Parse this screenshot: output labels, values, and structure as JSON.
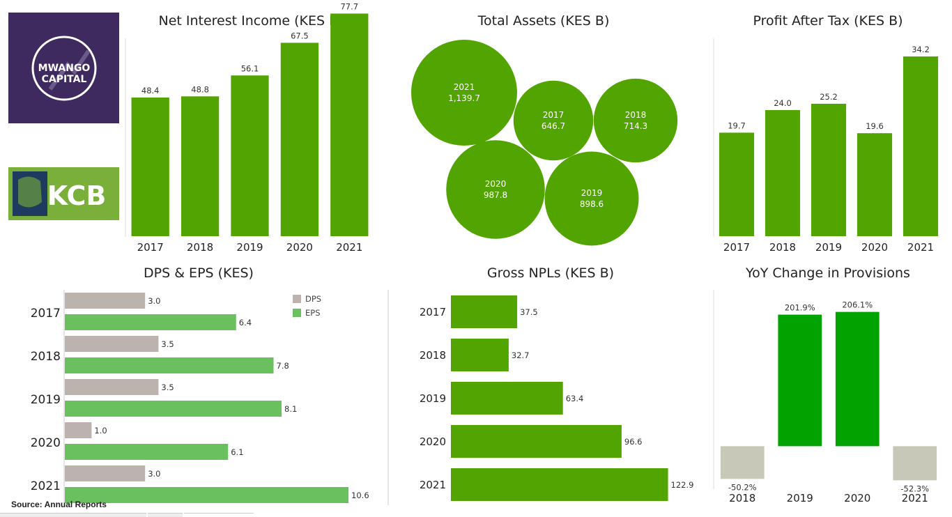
{
  "titles": {
    "nii": "Net Interest Income (KES B)",
    "assets": "Total Assets (KES B)",
    "pat": "Profit After Tax (KES B)",
    "dps_eps": "DPS & EPS (KES)",
    "npl": "Gross NPLs (KES B)",
    "prov": "YoY Change in Provisions"
  },
  "logos": {
    "mwango_line1": "MWANGO",
    "mwango_line2": "CAPITAL",
    "kcb": "KCB"
  },
  "source": "Source: Annual Reports",
  "colors": {
    "green": "#52a500",
    "light_green": "#6abf5e",
    "bright_green": "#00a300",
    "grey": "#bcb2ae",
    "neg_grey": "#c8c8b8",
    "purple": "#3e2a5e",
    "kcb_green": "#7ab03a"
  },
  "chart_data": [
    {
      "id": "nii",
      "type": "bar",
      "title": "Net Interest Income (KES B)",
      "categories": [
        "2017",
        "2018",
        "2019",
        "2020",
        "2021"
      ],
      "values": [
        48.4,
        48.8,
        56.1,
        67.5,
        77.7
      ],
      "labels": [
        "48.4",
        "48.8",
        "56.1",
        "67.5",
        "77.7"
      ],
      "ylim": [
        0,
        80
      ]
    },
    {
      "id": "assets",
      "type": "bubble",
      "title": "Total Assets (KES B)",
      "points": [
        {
          "year": "2021",
          "value": 1139.7,
          "label": "1,139.7"
        },
        {
          "year": "2017",
          "value": 646.7,
          "label": "646.7"
        },
        {
          "year": "2018",
          "value": 714.3,
          "label": "714.3"
        },
        {
          "year": "2020",
          "value": 987.8,
          "label": "987.8"
        },
        {
          "year": "2019",
          "value": 898.6,
          "label": "898.6"
        }
      ]
    },
    {
      "id": "pat",
      "type": "bar",
      "title": "Profit After Tax (KES B)",
      "categories": [
        "2017",
        "2018",
        "2019",
        "2020",
        "2021"
      ],
      "values": [
        19.7,
        24.0,
        25.2,
        19.6,
        34.2
      ],
      "labels": [
        "19.7",
        "24.0",
        "25.2",
        "19.6",
        "34.2"
      ],
      "ylim": [
        0,
        35
      ]
    },
    {
      "id": "dps_eps",
      "type": "bar",
      "orientation": "horizontal",
      "title": "DPS & EPS (KES)",
      "categories": [
        "2017",
        "2018",
        "2019",
        "2020",
        "2021"
      ],
      "series": [
        {
          "name": "DPS",
          "values": [
            3.0,
            3.5,
            3.5,
            1.0,
            3.0
          ],
          "labels": [
            "3.0",
            "3.5",
            "3.5",
            "1.0",
            "3.0"
          ]
        },
        {
          "name": "EPS",
          "values": [
            6.4,
            7.8,
            8.1,
            6.1,
            10.6
          ],
          "labels": [
            "6.4",
            "7.8",
            "8.1",
            "6.1",
            "10.6"
          ]
        }
      ],
      "legend": "top-right",
      "xlim": [
        0,
        11
      ]
    },
    {
      "id": "npl",
      "type": "bar",
      "orientation": "horizontal",
      "title": "Gross NPLs (KES B)",
      "categories": [
        "2017",
        "2018",
        "2019",
        "2020",
        "2021"
      ],
      "values": [
        37.5,
        32.7,
        63.4,
        96.6,
        122.9
      ],
      "labels": [
        "37.5",
        "32.7",
        "63.4",
        "96.6",
        "122.9"
      ],
      "xlim": [
        0,
        130
      ]
    },
    {
      "id": "prov",
      "type": "bar",
      "title": "YoY Change in Provisions",
      "categories": [
        "2018",
        "2019",
        "2020",
        "2021"
      ],
      "values": [
        -50.2,
        201.9,
        206.1,
        -52.3
      ],
      "labels": [
        "-50.2%",
        "201.9%",
        "206.1%",
        "-52.3%"
      ],
      "ylim": [
        -60,
        210
      ]
    }
  ]
}
